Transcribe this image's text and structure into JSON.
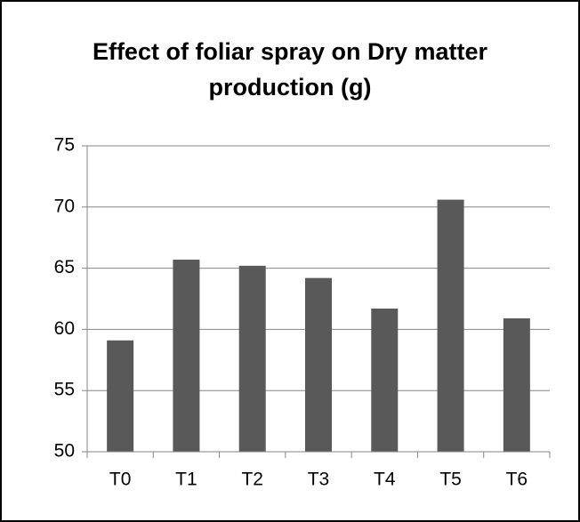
{
  "chart_data": {
    "type": "bar",
    "title": "Effect of foliar spray on Dry matter production (g)",
    "categories": [
      "T0",
      "T1",
      "T2",
      "T3",
      "T4",
      "T5",
      "T6"
    ],
    "values": [
      59.1,
      65.7,
      65.2,
      64.2,
      61.7,
      70.6,
      60.9
    ],
    "color": "#595959",
    "ylim": [
      50,
      75
    ],
    "yticks": [
      50,
      55,
      60,
      65,
      70,
      75
    ],
    "grid": true
  }
}
